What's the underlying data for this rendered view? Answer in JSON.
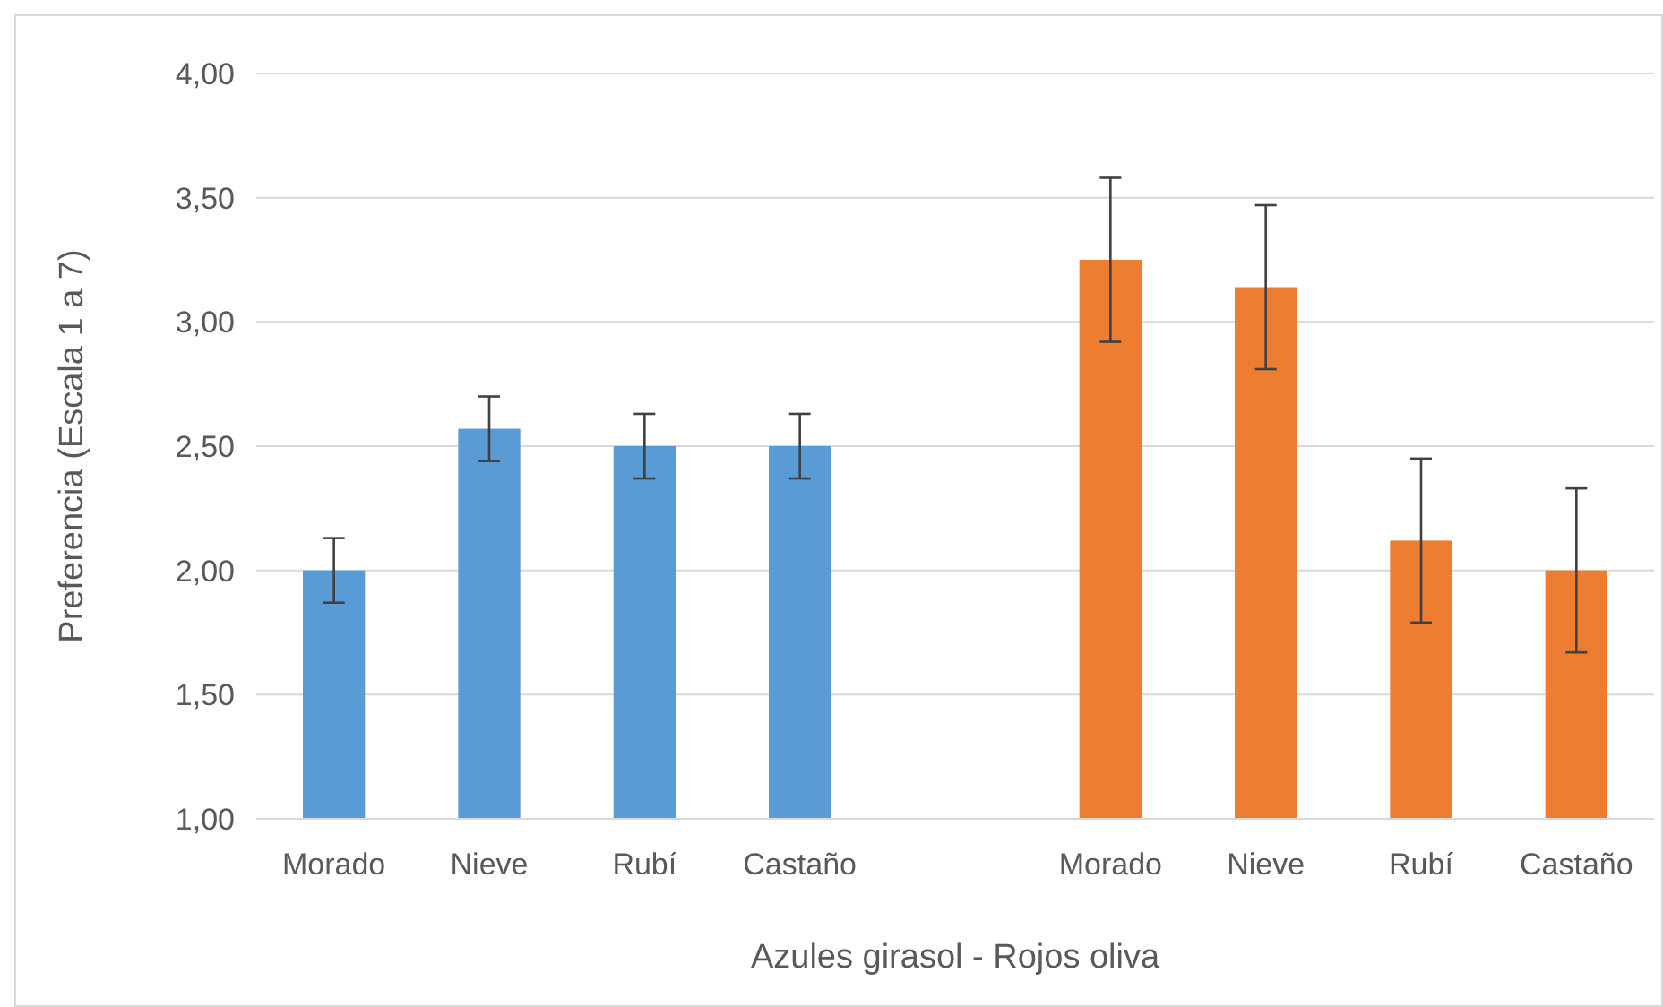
{
  "chart_data": {
    "type": "bar",
    "xlabel": "Azules girasol - Rojos oliva",
    "ylabel": "Preferencia (Escala 1 a 7)",
    "categories": [
      "Morado",
      "Nieve",
      "Rubí",
      "Castaño",
      null,
      "Morado",
      "Nieve",
      "Rubí",
      "Castaño"
    ],
    "values": [
      2.0,
      2.57,
      2.5,
      2.5,
      null,
      3.25,
      3.14,
      2.12,
      2.0
    ],
    "colors": [
      "#5b9bd5",
      "#5b9bd5",
      "#5b9bd5",
      "#5b9bd5",
      null,
      "#ed7d31",
      "#ed7d31",
      "#ed7d31",
      "#ed7d31"
    ],
    "errors": [
      0.13,
      0.13,
      0.13,
      0.13,
      null,
      0.33,
      0.33,
      0.33,
      0.33
    ],
    "ylim": [
      1,
      4
    ],
    "yticks": [
      {
        "value": 1,
        "label": "1,00"
      },
      {
        "value": 1.5,
        "label": "1,50"
      },
      {
        "value": 2,
        "label": "2,00"
      },
      {
        "value": 2.5,
        "label": "2,50"
      },
      {
        "value": 3,
        "label": "3,00"
      },
      {
        "value": 3.5,
        "label": "3,50"
      },
      {
        "value": 4,
        "label": "4,00"
      }
    ],
    "grid": "y"
  }
}
